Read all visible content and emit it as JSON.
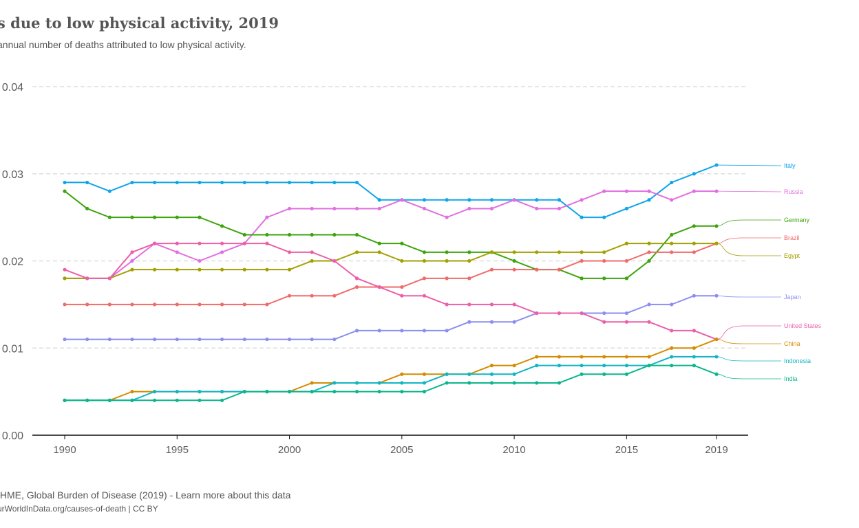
{
  "header": {
    "title": "s due to low physical activity, 2019",
    "subtitle": "annual number of deaths attributed to low physical activity."
  },
  "footer": {
    "source": "IHME, Global Burden of Disease (2019) - Learn more about this data",
    "note": "urWorldInData.org/causes-of-death | CC BY"
  },
  "chart_data": {
    "type": "line",
    "x": [
      1990,
      1991,
      1992,
      1993,
      1994,
      1995,
      1996,
      1997,
      1998,
      1999,
      2000,
      2001,
      2002,
      2003,
      2004,
      2005,
      2006,
      2007,
      2008,
      2009,
      2010,
      2011,
      2012,
      2013,
      2014,
      2015,
      2016,
      2017,
      2018,
      2019
    ],
    "xlim": [
      1990,
      2019
    ],
    "ylim": [
      0,
      0.04
    ],
    "x_ticks": [
      1990,
      1995,
      2000,
      2005,
      2010,
      2015,
      2019
    ],
    "y_ticks": [
      0,
      0.01,
      0.02,
      0.03,
      0.04
    ],
    "y_tick_labels": [
      "0.00",
      "0.01",
      "0.02",
      "0.03",
      "0.04"
    ],
    "grid": true,
    "legend_placement": "right (inline labels)",
    "series": [
      {
        "name": "Italy",
        "color": "#0ea5e9",
        "values": [
          0.029,
          0.029,
          0.028,
          0.029,
          0.029,
          0.029,
          0.029,
          0.029,
          0.029,
          0.029,
          0.029,
          0.029,
          0.029,
          0.029,
          0.027,
          0.027,
          0.027,
          0.027,
          0.027,
          0.027,
          0.027,
          0.027,
          0.027,
          0.025,
          0.025,
          0.026,
          0.027,
          0.029,
          0.03,
          0.031
        ]
      },
      {
        "name": "Russia",
        "color": "#e16fe0",
        "values": [
          0.018,
          0.018,
          0.018,
          0.02,
          0.022,
          0.021,
          0.02,
          0.021,
          0.022,
          0.025,
          0.026,
          0.026,
          0.026,
          0.026,
          0.026,
          0.027,
          0.026,
          0.025,
          0.026,
          0.026,
          0.027,
          0.026,
          0.026,
          0.027,
          0.028,
          0.028,
          0.028,
          0.027,
          0.028,
          0.028
        ]
      },
      {
        "name": "Germany",
        "color": "#3ca40c",
        "values": [
          0.028,
          0.026,
          0.025,
          0.025,
          0.025,
          0.025,
          0.025,
          0.024,
          0.023,
          0.023,
          0.023,
          0.023,
          0.023,
          0.023,
          0.022,
          0.022,
          0.021,
          0.021,
          0.021,
          0.021,
          0.02,
          0.019,
          0.019,
          0.018,
          0.018,
          0.018,
          0.02,
          0.023,
          0.024,
          0.024
        ]
      },
      {
        "name": "Brazil",
        "color": "#ef6b6b",
        "values": [
          0.015,
          0.015,
          0.015,
          0.015,
          0.015,
          0.015,
          0.015,
          0.015,
          0.015,
          0.015,
          0.016,
          0.016,
          0.016,
          0.017,
          0.017,
          0.017,
          0.018,
          0.018,
          0.018,
          0.019,
          0.019,
          0.019,
          0.019,
          0.02,
          0.02,
          0.02,
          0.021,
          0.021,
          0.021,
          0.022
        ]
      },
      {
        "name": "Egypt",
        "color": "#a3a000",
        "values": [
          0.018,
          0.018,
          0.018,
          0.019,
          0.019,
          0.019,
          0.019,
          0.019,
          0.019,
          0.019,
          0.019,
          0.02,
          0.02,
          0.021,
          0.021,
          0.02,
          0.02,
          0.02,
          0.02,
          0.021,
          0.021,
          0.021,
          0.021,
          0.021,
          0.021,
          0.022,
          0.022,
          0.022,
          0.022,
          0.022
        ]
      },
      {
        "name": "Japan",
        "color": "#8b8ef0",
        "values": [
          0.011,
          0.011,
          0.011,
          0.011,
          0.011,
          0.011,
          0.011,
          0.011,
          0.011,
          0.011,
          0.011,
          0.011,
          0.011,
          0.012,
          0.012,
          0.012,
          0.012,
          0.012,
          0.013,
          0.013,
          0.013,
          0.014,
          0.014,
          0.014,
          0.014,
          0.014,
          0.015,
          0.015,
          0.016,
          0.016
        ]
      },
      {
        "name": "United States",
        "color": "#ec5fa9",
        "values": [
          0.019,
          0.018,
          0.018,
          0.021,
          0.022,
          0.022,
          0.022,
          0.022,
          0.022,
          0.022,
          0.021,
          0.021,
          0.02,
          0.018,
          0.017,
          0.016,
          0.016,
          0.015,
          0.015,
          0.015,
          0.015,
          0.014,
          0.014,
          0.014,
          0.013,
          0.013,
          0.013,
          0.012,
          0.012,
          0.011
        ]
      },
      {
        "name": "China",
        "color": "#d48c00",
        "values": [
          0.004,
          0.004,
          0.004,
          0.005,
          0.005,
          0.005,
          0.005,
          0.005,
          0.005,
          0.005,
          0.005,
          0.006,
          0.006,
          0.006,
          0.006,
          0.007,
          0.007,
          0.007,
          0.007,
          0.008,
          0.008,
          0.009,
          0.009,
          0.009,
          0.009,
          0.009,
          0.009,
          0.01,
          0.01,
          0.011
        ]
      },
      {
        "name": "Indonesia",
        "color": "#12b5c4",
        "values": [
          0.004,
          0.004,
          0.004,
          0.004,
          0.005,
          0.005,
          0.005,
          0.005,
          0.005,
          0.005,
          0.005,
          0.005,
          0.006,
          0.006,
          0.006,
          0.006,
          0.006,
          0.007,
          0.007,
          0.007,
          0.007,
          0.008,
          0.008,
          0.008,
          0.008,
          0.008,
          0.008,
          0.009,
          0.009,
          0.009
        ]
      },
      {
        "name": "India",
        "color": "#0ab68b",
        "values": [
          0.004,
          0.004,
          0.004,
          0.004,
          0.004,
          0.004,
          0.004,
          0.004,
          0.005,
          0.005,
          0.005,
          0.005,
          0.005,
          0.005,
          0.005,
          0.005,
          0.005,
          0.006,
          0.006,
          0.006,
          0.006,
          0.006,
          0.006,
          0.007,
          0.007,
          0.007,
          0.008,
          0.008,
          0.008,
          0.007
        ]
      }
    ]
  }
}
